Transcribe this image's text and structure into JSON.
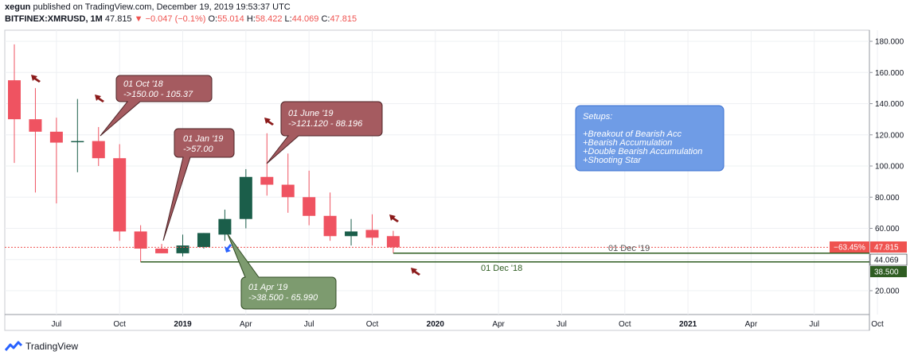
{
  "header": {
    "author": "xegun",
    "published_text": "published on TradingView.com, December 19, 2019 19:53:37 UTC",
    "symbol": "BITFINEX:XMRUSD, 1M",
    "last": "47.815",
    "change": "▼ −0.047 (−0.1%)",
    "o_label": "O:",
    "o": "55.014",
    "h_label": "H:",
    "h": "58.422",
    "l_label": "L:",
    "l": "44.069",
    "c_label": "C:",
    "c": "47.815"
  },
  "footer": {
    "brand": "TradingView"
  },
  "chart_data": {
    "type": "candlestick",
    "symbol": "BITFINEX:XMRUSD",
    "interval": "1M",
    "ylim": [
      4,
      184
    ],
    "y_ticks": [
      "20.000",
      "40.000",
      "60.000",
      "80.000",
      "100.000",
      "120.000",
      "140.000",
      "160.000",
      "180.000"
    ],
    "x_ticks": [
      "Jul",
      "Oct",
      "2019",
      "Apr",
      "Jul",
      "Oct",
      "2020",
      "Apr",
      "Jul",
      "Oct",
      "2021",
      "Apr",
      "Jul",
      "Oct"
    ],
    "candles": [
      {
        "date": "2018-05",
        "open": 155,
        "high": 178,
        "low": 102,
        "close": 130
      },
      {
        "date": "2018-06",
        "open": 130,
        "high": 150,
        "low": 83,
        "close": 122
      },
      {
        "date": "2018-07",
        "open": 122,
        "high": 131,
        "low": 76,
        "close": 115
      },
      {
        "date": "2018-08",
        "open": 116,
        "high": 143,
        "low": 96,
        "close": 116
      },
      {
        "date": "2018-09",
        "open": 116,
        "high": 125,
        "low": 100,
        "close": 105
      },
      {
        "date": "2018-10",
        "open": 105,
        "high": 114,
        "low": 52,
        "close": 58
      },
      {
        "date": "2018-11",
        "open": 58,
        "high": 62,
        "low": 38.5,
        "close": 47
      },
      {
        "date": "2018-12",
        "open": 47,
        "high": 50,
        "low": 44,
        "close": 44
      },
      {
        "date": "2019-01",
        "open": 44,
        "high": 56,
        "low": 42,
        "close": 49
      },
      {
        "date": "2019-02",
        "open": 48,
        "high": 57,
        "low": 47,
        "close": 57
      },
      {
        "date": "2019-03",
        "open": 56,
        "high": 72,
        "low": 52,
        "close": 66
      },
      {
        "date": "2019-04",
        "open": 66,
        "high": 98,
        "low": 60,
        "close": 93
      },
      {
        "date": "2019-05",
        "open": 93,
        "high": 121,
        "low": 81,
        "close": 88
      },
      {
        "date": "2019-06",
        "open": 88,
        "high": 108,
        "low": 70,
        "close": 80
      },
      {
        "date": "2019-07",
        "open": 80,
        "high": 97,
        "low": 62,
        "close": 68
      },
      {
        "date": "2019-08",
        "open": 68,
        "high": 83,
        "low": 52,
        "close": 55
      },
      {
        "date": "2019-09",
        "open": 55,
        "high": 66,
        "low": 49,
        "close": 58
      },
      {
        "date": "2019-10",
        "open": 59,
        "high": 69,
        "low": 49,
        "close": 54
      },
      {
        "date": "2019-11",
        "open": 55.014,
        "high": 58.422,
        "low": 44.069,
        "close": 47.815
      }
    ],
    "price_line": {
      "value": 47.815,
      "label": "47.815",
      "pct_label": "−63.45%"
    },
    "support_line": {
      "value": 38.5,
      "label": "38.500"
    },
    "low_label": {
      "value": 44.069,
      "label": "44.069"
    },
    "line_labels": {
      "dec19": "01 Dec '19",
      "dec18": "01 Dec '18"
    },
    "callouts": [
      {
        "id": "oct18",
        "lines": [
          "01 Oct '18",
          "->150.00 - 105.37"
        ],
        "color": "#a55b60"
      },
      {
        "id": "jan19",
        "lines": [
          "01 Jan '19",
          "->57.00"
        ],
        "color": "#a55b60"
      },
      {
        "id": "jun19",
        "lines": [
          "01 June '19",
          "->121.120 - 88.196"
        ],
        "color": "#a55b60"
      },
      {
        "id": "apr19",
        "lines": [
          "01 Apr '19",
          "->38.500 - 65.990"
        ],
        "color": "#7d9b6f"
      }
    ],
    "setups": {
      "title": "Setups:",
      "items": [
        "+Breakout of Bearish Acc",
        "+Bearish Accumulation",
        "+Double Bearish Accumulation",
        "+Shooting Star"
      ]
    },
    "colors": {
      "up": "#1b5e4a",
      "down": "#ef5361",
      "bear_callout": "#a55b60",
      "bull_callout": "#7d9b6f",
      "setups_box": "#6f9ce6",
      "support": "#2f5d22",
      "price_line": "#ef5350"
    }
  }
}
